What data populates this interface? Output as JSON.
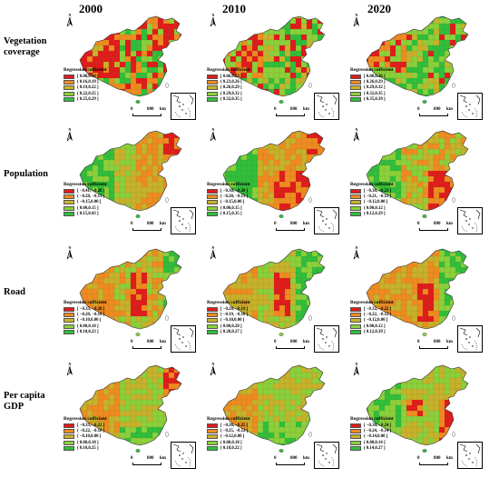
{
  "columns": [
    "2000",
    "2010",
    "2020"
  ],
  "rows": [
    {
      "label": "Vegetation coverage",
      "label_lines": [
        "Vegetation",
        "coverage"
      ]
    },
    {
      "label": "Population",
      "label_lines": [
        "Population"
      ]
    },
    {
      "label": "Road",
      "label_lines": [
        "Road"
      ]
    },
    {
      "label": "Per capita GDP",
      "label_lines": [
        "Per capita",
        "GDP"
      ]
    }
  ],
  "legend_title": "Regression cofficient",
  "north_label": "N",
  "scale": {
    "left": "0",
    "right": "800",
    "unit": "km"
  },
  "class_colors": [
    "#e11b1b",
    "#f08b1f",
    "#c8b22a",
    "#8bd13a",
    "#2fbf3a"
  ],
  "legends": [
    [
      [
        "[ 0.00,0.16 ]",
        "( 0.16,0.19 ]",
        "( 0.19,0.22 ]",
        "( 0.22,0.25 ]",
        "( 0.25,0.29 ]"
      ],
      [
        "[ 0.06,0.23 ]",
        "( 0.23,0.26 ]",
        "( 0.26,0.29 ]",
        "( 0.29,0.32 ]",
        "( 0.32,0.35 ]"
      ],
      [
        "[ 0.08,0.26 ]",
        "( 0.26,0.29 ]",
        "( 0.29,0.32 ]",
        "( 0.32,0.35 ]",
        "( 0.35,0.39 ]"
      ]
    ],
    [
      [
        "[ −0.41, −0.28 ]",
        "( −0.28, −0.15 ]",
        "( −0.15,0.00 ]",
        "( 0.00,0.15 ]",
        "( 0.15,0.43 ]"
      ],
      [
        "[ −0.30, −0.20 ]",
        "( −0.20, −0.15 ]",
        "( −0.15,0.00 ]",
        "( 0.00,0.15 ]",
        "( 0.15,0.35 ]"
      ],
      [
        "[ −0.38, −0.21 ]",
        "( −0.21, −0.12 ]",
        "( −0.12,0.00 ]",
        "( 0.00,0.12 ]",
        "( 0.12,0.29 ]"
      ]
    ],
    [
      [
        "[ −0.33, −0.20 ]",
        "( −0.20, −0.10 ]",
        "( −0.10,0.00 ]",
        "( 0.00,0.10 ]",
        "( 0.10,0.23 ]"
      ],
      [
        "[ −0.28, −0.19 ]",
        "( −0.19, −0.10 ]",
        "( −0.10,0.00 ]",
        "( 0.00,0.20 ]",
        "( 0.20,0.27 ]"
      ],
      [
        "[ −0.32, −0.22 ]",
        "( −0.22, −0.12 ]",
        "( −0.12,0.00 ]",
        "( 0.00,0.12 ]",
        "( 0.12,0.39 ]"
      ]
    ],
    [
      [
        "[ −0.33, −0.22 ]",
        "( −0.22, −0.10 ]",
        "( −0.10,0.00 ]",
        "( 0.00,0.10 ]",
        "( 0.10,0.25 ]"
      ],
      [
        "[ −0.36, −0.25 ]",
        "( −0.25, −0.12 ]",
        "( −0.12,0.00 ]",
        "( 0.00,0.18 ]",
        "( 0.18,0.22 ]"
      ],
      [
        "[ −0.38, −0.24 ]",
        "( −0.24, −0.14 ]",
        "( −0.14,0.00 ]",
        "( 0.00,0.14 ]",
        "( 0.14,0.27 ]"
      ]
    ]
  ],
  "patterns": [
    [
      "veg-west-red",
      "veg-mixed",
      "veg-green"
    ],
    [
      "pop-green-west",
      "pop-orange-center",
      "pop-red-east"
    ],
    [
      "road-red-center",
      "road-green-east",
      "road-mixed"
    ],
    [
      "gdp-orange-west",
      "gdp-mixed",
      "gdp-red-east"
    ]
  ]
}
